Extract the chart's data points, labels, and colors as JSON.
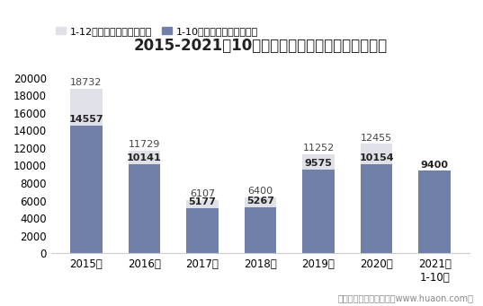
{
  "title": "2015-2021年10月郑州商品交易所白糖期货成交量",
  "legend_labels": [
    "1-12月期货成交量（万手）",
    "1-10月期货成交量（万手）"
  ],
  "categories": [
    "2015年",
    "2016年",
    "2017年",
    "2018年",
    "2019年",
    "2020年",
    "2021年\n1-10月"
  ],
  "full_year": [
    18732,
    11729,
    6107,
    6400,
    11252,
    12455,
    null
  ],
  "jan_oct": [
    14557,
    10141,
    5177,
    5267,
    9575,
    10154,
    9400
  ],
  "full_year_color": "#e0e0e8",
  "jan_oct_color": "#7080a8",
  "bar_width": 0.55,
  "ylim": [
    0,
    22000
  ],
  "yticks": [
    0,
    2000,
    4000,
    6000,
    8000,
    10000,
    12000,
    14000,
    16000,
    18000,
    20000
  ],
  "background_color": "#ffffff",
  "footnote": "制图：华经产业研究院（www.huaon.com）",
  "title_fontsize": 12,
  "label_fontsize": 8,
  "tick_fontsize": 8.5
}
